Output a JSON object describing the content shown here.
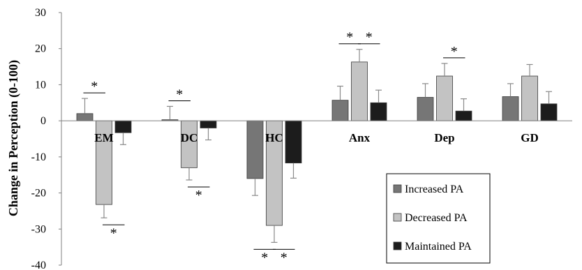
{
  "chart_data": {
    "type": "bar",
    "ylabel": "Change in Perception (0-100)",
    "xlabel": "",
    "title": "",
    "ylim": [
      -40,
      30
    ],
    "yticks": [
      30,
      20,
      10,
      0,
      -10,
      -20,
      -30,
      -40
    ],
    "categories": [
      "EM",
      "DC",
      "HC",
      "Anx",
      "Dep",
      "GD"
    ],
    "series": [
      {
        "name": "Increased PA",
        "color": "#767676",
        "values": [
          2,
          0.3,
          -16,
          5.7,
          6.5,
          6.7
        ],
        "errors": [
          4.2,
          3.7,
          4.7,
          3.9,
          3.8,
          3.6
        ]
      },
      {
        "name": "Decreased PA",
        "color": "#c3c3c3",
        "values": [
          -23.2,
          -13,
          -29,
          16.3,
          12.4,
          12.4
        ],
        "errors": [
          3.7,
          3.4,
          4.7,
          3.5,
          3.5,
          3.2
        ]
      },
      {
        "name": "Maintained PA",
        "color": "#1c1c1c",
        "values": [
          -3.3,
          -2,
          -11.7,
          5,
          2.7,
          4.7
        ],
        "errors": [
          3.3,
          3.3,
          4.2,
          3.5,
          3.4,
          3.4
        ]
      }
    ],
    "legend": {
      "position": "bottom-right"
    },
    "grid": false,
    "significance": [
      {
        "category": "EM",
        "pair": "increased-decreased",
        "side": "above",
        "label": "*"
      },
      {
        "category": "EM",
        "pair": "decreased-maintained",
        "side": "below",
        "label": "*"
      },
      {
        "category": "DC",
        "pair": "increased-decreased",
        "side": "above",
        "label": "*"
      },
      {
        "category": "DC",
        "pair": "decreased-maintained",
        "side": "below",
        "label": "*"
      },
      {
        "category": "HC",
        "pair": "increased-decreased",
        "side": "below",
        "label": "*"
      },
      {
        "category": "HC",
        "pair": "decreased-maintained",
        "side": "below",
        "label": "*"
      },
      {
        "category": "Anx",
        "pair": "increased-decreased",
        "side": "above",
        "label": "*"
      },
      {
        "category": "Anx",
        "pair": "decreased-maintained",
        "side": "above",
        "label": "*"
      },
      {
        "category": "Dep",
        "pair": "decreased-maintained",
        "side": "above",
        "label": "*"
      }
    ]
  }
}
